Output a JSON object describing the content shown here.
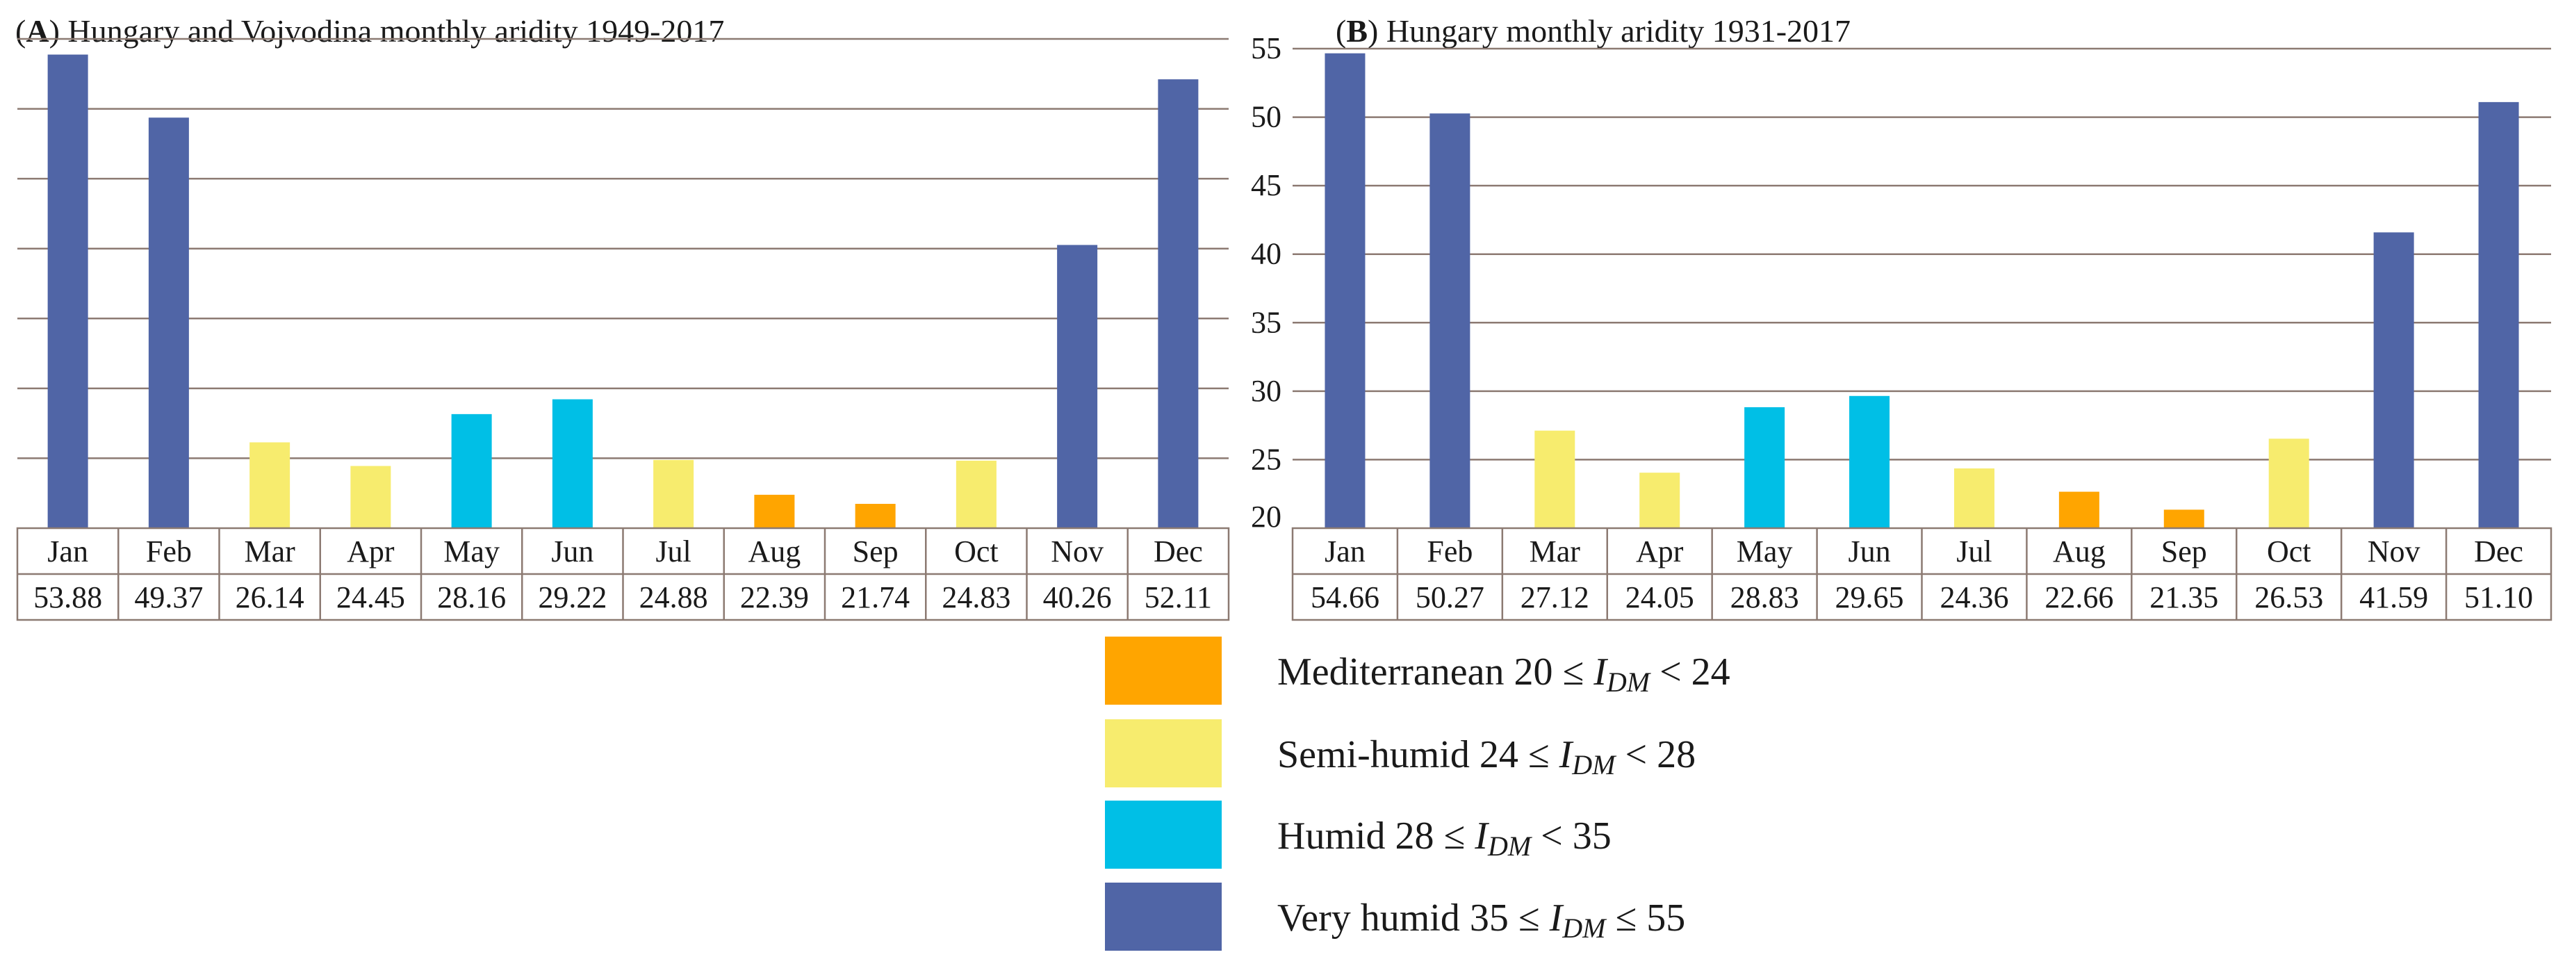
{
  "chart_data": [
    {
      "type": "bar",
      "panel": "A",
      "title": "Hungary and Vojvodina monthly aridity 1949-2017",
      "categories": [
        "Jan",
        "Feb",
        "Mar",
        "Apr",
        "May",
        "Jun",
        "Jul",
        "Aug",
        "Sep",
        "Oct",
        "Nov",
        "Dec"
      ],
      "values": [
        53.88,
        49.37,
        26.14,
        24.45,
        28.16,
        29.22,
        24.88,
        22.39,
        21.74,
        24.83,
        40.26,
        52.11
      ],
      "value_labels": [
        "53.88",
        "49.37",
        "26.14",
        "24.45",
        "28.16",
        "29.22",
        "24.88",
        "22.39",
        "21.74",
        "24.83",
        "40.26",
        "52.11"
      ],
      "ylim": [
        20,
        55
      ],
      "yticks": [
        20,
        25,
        30,
        35,
        40,
        45,
        50,
        55
      ],
      "ytick_labels_visible": false,
      "grid": true,
      "xlabel": "",
      "ylabel": ""
    },
    {
      "type": "bar",
      "panel": "B",
      "title": "Hungary monthly aridity 1931-2017",
      "categories": [
        "Jan",
        "Feb",
        "Mar",
        "Apr",
        "May",
        "Jun",
        "Jul",
        "Aug",
        "Sep",
        "Oct",
        "Nov",
        "Dec"
      ],
      "values": [
        54.66,
        50.27,
        27.12,
        24.05,
        28.83,
        29.65,
        24.36,
        22.66,
        21.35,
        26.53,
        41.59,
        51.1
      ],
      "value_labels": [
        "54.66",
        "50.27",
        "27.12",
        "24.05",
        "28.83",
        "29.65",
        "24.36",
        "22.66",
        "21.35",
        "26.53",
        "41.59",
        "51.10"
      ],
      "ylim": [
        20,
        55
      ],
      "yticks": [
        20,
        25,
        30,
        35,
        40,
        45,
        50,
        55
      ],
      "ytick_labels": [
        "20",
        "25",
        "30",
        "35",
        "40",
        "45",
        "50",
        "55"
      ],
      "ytick_labels_visible": true,
      "grid": true,
      "xlabel": "",
      "ylabel": ""
    }
  ],
  "legend": {
    "position": "bottom-center",
    "items": [
      {
        "key": "mediterranean",
        "name": "Mediterranean",
        "lower": "20",
        "op1": "≤",
        "op2": "<",
        "upper": "24",
        "min": 20,
        "max": 24,
        "color": "#FFA500"
      },
      {
        "key": "semi-humid",
        "name": "Semi-humid",
        "lower": "24",
        "op1": "≤",
        "op2": "<",
        "upper": "28",
        "min": 24,
        "max": 28,
        "color": "#F7EC6E"
      },
      {
        "key": "humid",
        "name": "Humid",
        "lower": "28",
        "op1": "≤",
        "op2": "<",
        "upper": "35",
        "min": 28,
        "max": 35,
        "color": "#00BFE6"
      },
      {
        "key": "very-humid",
        "name": "Very humid",
        "lower": "35",
        "op1": "≤",
        "op2": "≤",
        "upper": "55",
        "min": 35,
        "max": 55.0001,
        "color": "#5065A6"
      }
    ],
    "index_var": "I",
    "index_sub": "DM"
  },
  "colors": {
    "grid": "#8C7A72",
    "table_border": "#8C7A72",
    "text": "#1a1a1a"
  }
}
